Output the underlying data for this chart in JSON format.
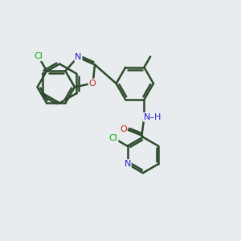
{
  "background_color": "#e8ecee",
  "bond_color": "#2d4a2d",
  "bond_width": 1.8,
  "atom_colors": {
    "C": "#2d4a2d",
    "N": "#2222cc",
    "O": "#cc2222",
    "Cl": "#00aa00",
    "H": "#2d4a2d"
  },
  "bg": "#e8ecee"
}
